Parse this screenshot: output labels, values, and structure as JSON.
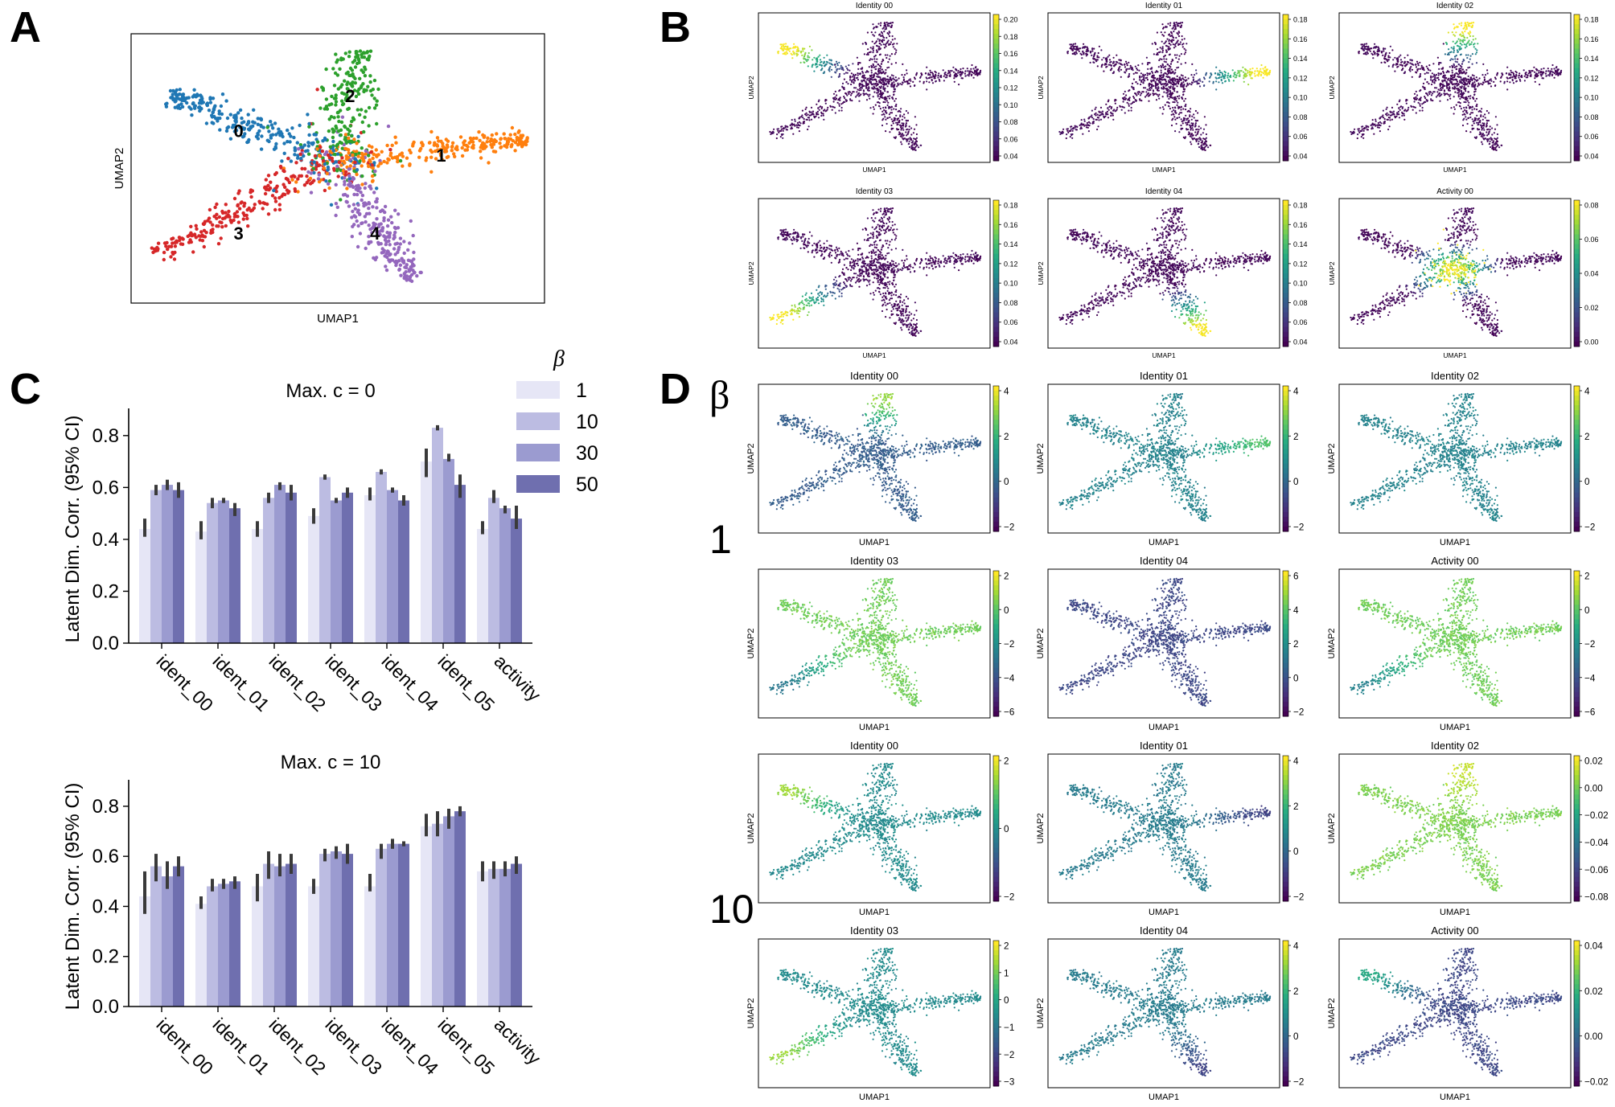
{
  "panel_labels": [
    "A",
    "B",
    "C",
    "D"
  ],
  "beta_rows": {
    "symbol": "β",
    "values": [
      "1",
      "10"
    ]
  },
  "colors": {
    "clusters": [
      "#1f77b4",
      "#ff7f0e",
      "#2ca02c",
      "#d62728",
      "#9467bd"
    ],
    "bar_shades": [
      "#e6e6f6",
      "#bcbce2",
      "#9b9bd0",
      "#6f6faf"
    ],
    "errbar": "#3a3a3a"
  },
  "chart_data": [
    {
      "type": "scatter",
      "panel": "A",
      "xlabel": "UMAP1",
      "ylabel": "UMAP2",
      "cluster_labels": [
        "0",
        "1",
        "2",
        "3",
        "4"
      ]
    },
    {
      "type": "scatter",
      "panel": "B",
      "xlabel": "UMAP1",
      "ylabel": "UMAP2",
      "colormap": "viridis",
      "subplots": [
        {
          "title": "Identity 00",
          "ticks": [
            "0.20",
            "0.18",
            "0.16",
            "0.14",
            "0.12",
            "0.10",
            "0.08",
            "0.06",
            "0.04"
          ],
          "highlight": "arm0"
        },
        {
          "title": "Identity 01",
          "ticks": [
            "0.18",
            "0.16",
            "0.14",
            "0.12",
            "0.10",
            "0.08",
            "0.06",
            "0.04"
          ],
          "highlight": "arm1"
        },
        {
          "title": "Identity 02",
          "ticks": [
            "0.18",
            "0.16",
            "0.14",
            "0.12",
            "0.10",
            "0.08",
            "0.06",
            "0.04"
          ],
          "highlight": "arm2"
        },
        {
          "title": "Identity 03",
          "ticks": [
            "0.18",
            "0.16",
            "0.14",
            "0.12",
            "0.10",
            "0.08",
            "0.06",
            "0.04"
          ],
          "highlight": "arm3"
        },
        {
          "title": "Identity 04",
          "ticks": [
            "0.18",
            "0.16",
            "0.14",
            "0.12",
            "0.10",
            "0.08",
            "0.06",
            "0.04"
          ],
          "highlight": "arm4"
        },
        {
          "title": "Activity 00",
          "ticks": [
            "0.08",
            "0.06",
            "0.04",
            "0.02",
            "0.00"
          ],
          "highlight": "center"
        }
      ]
    },
    {
      "type": "bar",
      "panel": "C",
      "title": "Max. c = 0",
      "categories": [
        "ident_00",
        "ident_01",
        "ident_02",
        "ident_03",
        "ident_04",
        "ident_05",
        "activity"
      ],
      "ylabel": "Latent Dim. Corr. (95% CI)",
      "ylim": [
        0,
        0.88
      ],
      "yticks": [
        "0.0",
        "0.2",
        "0.4",
        "0.6",
        "0.8"
      ],
      "legend_title": "β",
      "legend_placement": "top-right outside",
      "series": [
        {
          "name": "1",
          "values": [
            0.44,
            0.43,
            0.44,
            0.49,
            0.57,
            0.7,
            0.44
          ],
          "ci": [
            [
              0.41,
              0.48
            ],
            [
              0.4,
              0.47
            ],
            [
              0.41,
              0.47
            ],
            [
              0.46,
              0.52
            ],
            [
              0.55,
              0.6
            ],
            [
              0.64,
              0.75
            ],
            [
              0.42,
              0.47
            ]
          ]
        },
        {
          "name": "10",
          "values": [
            0.59,
            0.54,
            0.56,
            0.64,
            0.66,
            0.83,
            0.56
          ],
          "ci": [
            [
              0.57,
              0.61
            ],
            [
              0.52,
              0.56
            ],
            [
              0.54,
              0.58
            ],
            [
              0.63,
              0.65
            ],
            [
              0.65,
              0.67
            ],
            [
              0.82,
              0.84
            ],
            [
              0.54,
              0.59
            ]
          ]
        },
        {
          "name": "30",
          "values": [
            0.61,
            0.55,
            0.61,
            0.55,
            0.59,
            0.71,
            0.52
          ],
          "ci": [
            [
              0.59,
              0.63
            ],
            [
              0.54,
              0.56
            ],
            [
              0.59,
              0.62
            ],
            [
              0.54,
              0.56
            ],
            [
              0.58,
              0.6
            ],
            [
              0.7,
              0.73
            ],
            [
              0.5,
              0.53
            ]
          ]
        },
        {
          "name": "50",
          "values": [
            0.59,
            0.52,
            0.58,
            0.58,
            0.55,
            0.61,
            0.48
          ],
          "ci": [
            [
              0.56,
              0.62
            ],
            [
              0.49,
              0.54
            ],
            [
              0.55,
              0.61
            ],
            [
              0.56,
              0.6
            ],
            [
              0.53,
              0.57
            ],
            [
              0.56,
              0.65
            ],
            [
              0.44,
              0.53
            ]
          ]
        }
      ]
    },
    {
      "type": "bar",
      "panel": "C",
      "title": "Max. c = 10",
      "categories": [
        "ident_00",
        "ident_01",
        "ident_02",
        "ident_03",
        "ident_04",
        "ident_05",
        "activity"
      ],
      "ylabel": "Latent Dim. Corr. (95% CI)",
      "ylim": [
        0,
        0.88
      ],
      "yticks": [
        "0.0",
        "0.2",
        "0.4",
        "0.6",
        "0.8"
      ],
      "series": [
        {
          "name": "1",
          "values": [
            0.44,
            0.41,
            0.48,
            0.48,
            0.48,
            0.72,
            0.54
          ],
          "ci": [
            [
              0.37,
              0.54
            ],
            [
              0.39,
              0.44
            ],
            [
              0.42,
              0.53
            ],
            [
              0.45,
              0.51
            ],
            [
              0.46,
              0.53
            ],
            [
              0.68,
              0.77
            ],
            [
              0.5,
              0.58
            ]
          ]
        },
        {
          "name": "10",
          "values": [
            0.56,
            0.48,
            0.57,
            0.61,
            0.63,
            0.73,
            0.55
          ],
          "ci": [
            [
              0.5,
              0.61
            ],
            [
              0.46,
              0.51
            ],
            [
              0.51,
              0.62
            ],
            [
              0.58,
              0.63
            ],
            [
              0.59,
              0.65
            ],
            [
              0.68,
              0.78
            ],
            [
              0.51,
              0.58
            ]
          ]
        },
        {
          "name": "30",
          "values": [
            0.52,
            0.49,
            0.56,
            0.62,
            0.65,
            0.76,
            0.55
          ],
          "ci": [
            [
              0.47,
              0.58
            ],
            [
              0.47,
              0.51
            ],
            [
              0.52,
              0.61
            ],
            [
              0.59,
              0.64
            ],
            [
              0.63,
              0.67
            ],
            [
              0.71,
              0.79
            ],
            [
              0.52,
              0.58
            ]
          ]
        },
        {
          "name": "50",
          "values": [
            0.56,
            0.5,
            0.57,
            0.61,
            0.65,
            0.78,
            0.57
          ],
          "ci": [
            [
              0.52,
              0.6
            ],
            [
              0.47,
              0.52
            ],
            [
              0.53,
              0.61
            ],
            [
              0.57,
              0.65
            ],
            [
              0.64,
              0.66
            ],
            [
              0.76,
              0.8
            ],
            [
              0.53,
              0.6
            ]
          ]
        }
      ]
    },
    {
      "type": "scatter",
      "panel": "D",
      "xlabel": "UMAP1",
      "ylabel": "UMAP2",
      "colormap": "viridis",
      "subplots": [
        {
          "title": "Identity 00",
          "ticks": [
            "4",
            "2",
            "0",
            "−2"
          ],
          "base": 0.3,
          "highlight": "arm2",
          "hi": 0.85
        },
        {
          "title": "Identity 01",
          "ticks": [
            "4",
            "2",
            "0",
            "−2"
          ],
          "base": 0.45,
          "highlight": "arm1",
          "hi": 0.72
        },
        {
          "title": "Identity 02",
          "ticks": [
            "4",
            "2",
            "0",
            "−2"
          ],
          "base": 0.45,
          "highlight": "none",
          "hi": 0.45
        },
        {
          "title": "Identity 03",
          "ticks": [
            "2",
            "0",
            "−2",
            "−4",
            "−6"
          ],
          "base": 0.78,
          "highlight": "arm3",
          "hi": 0.4
        },
        {
          "title": "Identity 04",
          "ticks": [
            "6",
            "4",
            "2",
            "0",
            "−2"
          ],
          "base": 0.22,
          "highlight": "arm4",
          "hi": 0.22
        },
        {
          "title": "Activity 00",
          "ticks": [
            "2",
            "0",
            "−2",
            "−4",
            "−6"
          ],
          "base": 0.78,
          "highlight": "arm3",
          "hi": 0.45
        },
        {
          "title": "Identity 00",
          "ticks": [
            "2",
            "0",
            "−2"
          ],
          "base": 0.48,
          "highlight": "arm0",
          "hi": 0.85
        },
        {
          "title": "Identity 01",
          "ticks": [
            "4",
            "2",
            "0",
            "−2"
          ],
          "base": 0.42,
          "highlight": "arm1",
          "hi": 0.2
        },
        {
          "title": "Identity 02",
          "ticks": [
            "0.02",
            "0.00",
            "−0.02",
            "−0.04",
            "−0.06",
            "−0.08"
          ],
          "base": 0.8,
          "highlight": "arm2",
          "hi": 0.92
        },
        {
          "title": "Identity 03",
          "ticks": [
            "2",
            "1",
            "0",
            "−1",
            "−2",
            "−3"
          ],
          "base": 0.48,
          "highlight": "arm3",
          "hi": 0.85
        },
        {
          "title": "Identity 04",
          "ticks": [
            "4",
            "2",
            "0",
            "−2"
          ],
          "base": 0.42,
          "highlight": "arm4",
          "hi": 0.2
        },
        {
          "title": "Activity 00",
          "ticks": [
            "0.04",
            "0.02",
            "0.00",
            "−0.02"
          ],
          "base": 0.22,
          "highlight": "arm0",
          "hi": 0.6
        }
      ]
    }
  ]
}
